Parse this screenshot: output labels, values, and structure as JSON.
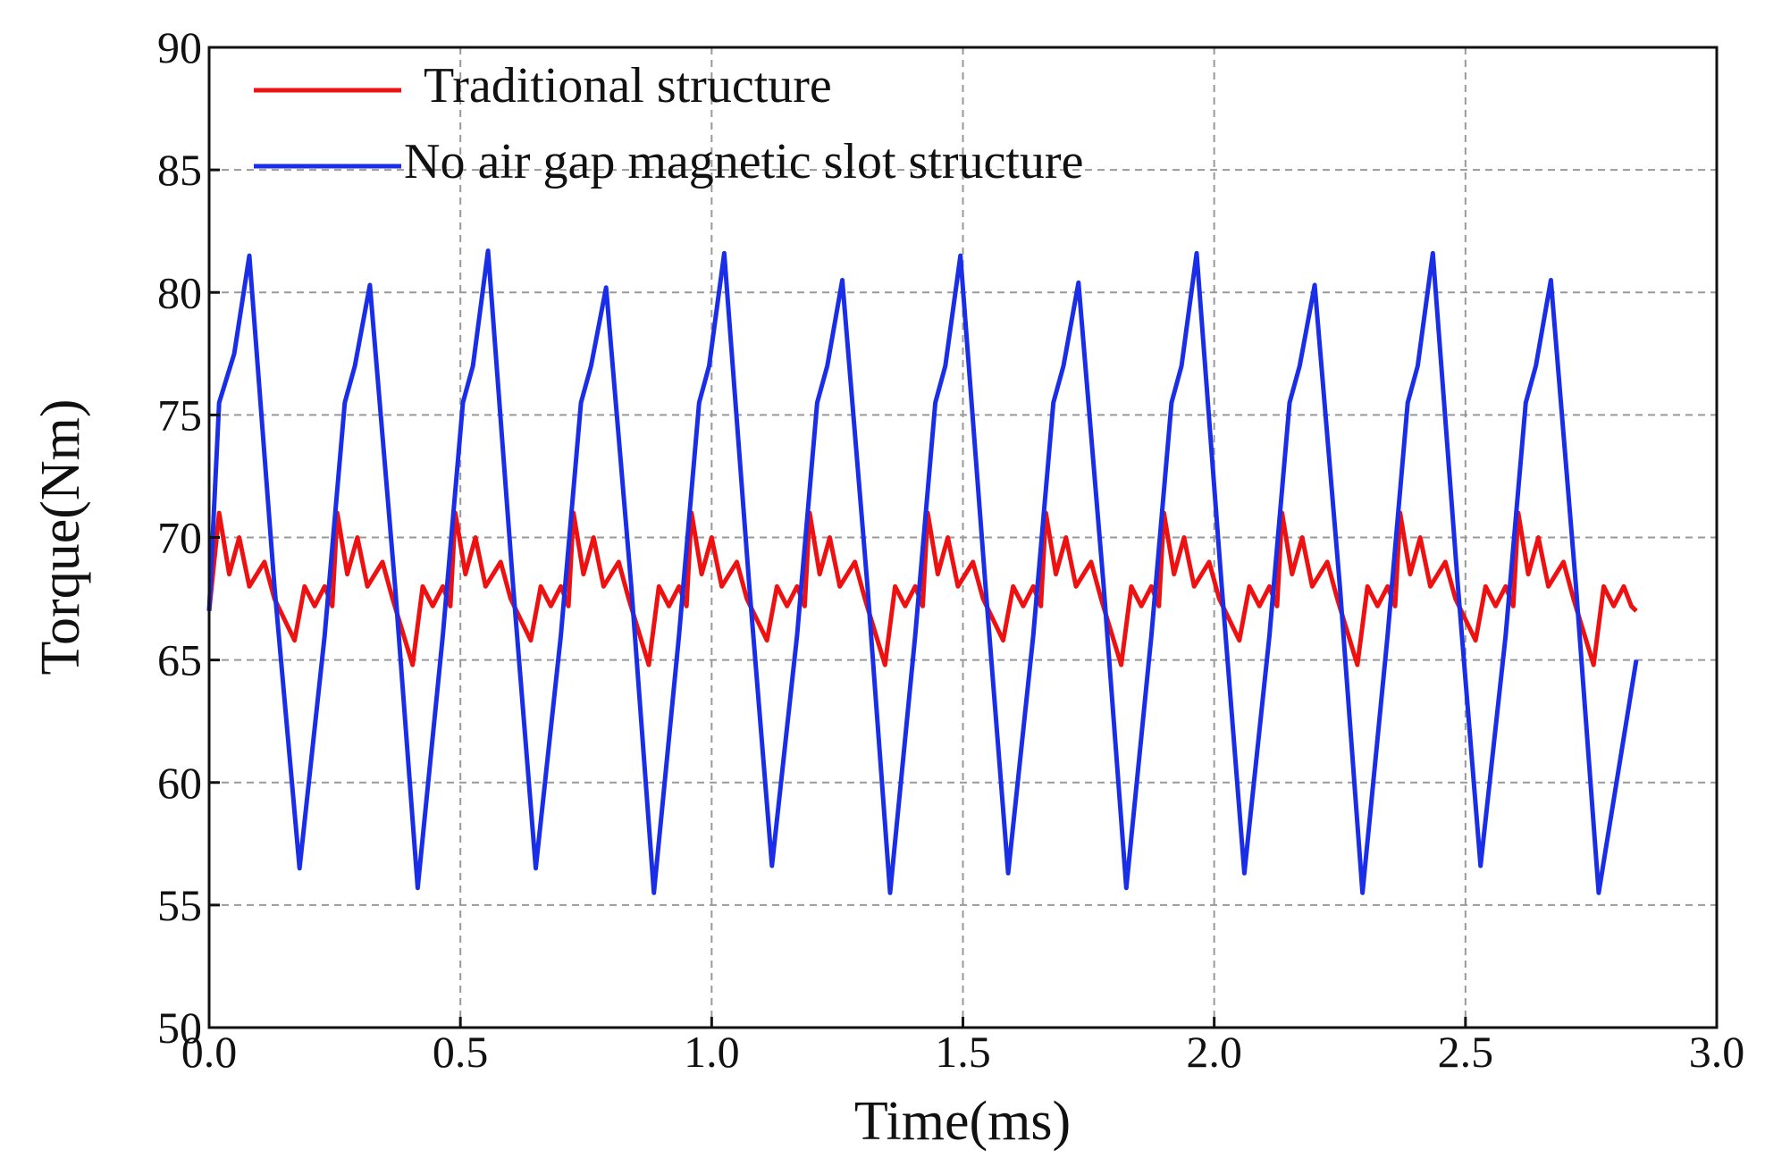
{
  "chart_data": {
    "type": "line",
    "xlabel": "Time(ms)",
    "ylabel": "Torque(Nm)",
    "xlim": [
      0,
      3.0
    ],
    "ylim": [
      50,
      90
    ],
    "xticks": [
      {
        "value": 0,
        "label": "0.0"
      },
      0.5,
      {
        "value": 1,
        "label": "1.0"
      },
      1.5,
      {
        "value": 2,
        "label": "2.0"
      },
      2.5,
      {
        "value": 3,
        "label": "3.0"
      }
    ],
    "yticks": [
      50,
      55,
      60,
      65,
      70,
      75,
      80,
      85,
      90
    ],
    "grid": true,
    "legend": "upper left",
    "series": [
      {
        "name": "Traditional structure",
        "color": "#ee1111",
        "x": [
          0,
          0.02,
          0.04,
          0.06,
          0.08,
          0.11,
          0.13,
          0.17,
          0.19,
          0.21,
          0.23,
          0.245,
          0.255,
          0.275,
          0.295,
          0.315,
          0.345,
          0.365,
          0.405,
          0.425,
          0.445,
          0.465,
          0.48,
          0.49,
          0.51,
          0.53,
          0.55,
          0.58,
          0.6,
          0.64,
          0.66,
          0.68,
          0.7,
          0.715,
          0.725,
          0.745,
          0.765,
          0.785,
          0.815,
          0.835,
          0.875,
          0.895,
          0.915,
          0.935,
          0.95,
          0.96,
          0.98,
          1.0,
          1.02,
          1.05,
          1.07,
          1.11,
          1.13,
          1.15,
          1.17,
          1.185,
          1.195,
          1.215,
          1.235,
          1.255,
          1.285,
          1.305,
          1.345,
          1.365,
          1.385,
          1.405,
          1.42,
          1.43,
          1.45,
          1.47,
          1.49,
          1.52,
          1.54,
          1.58,
          1.6,
          1.62,
          1.64,
          1.655,
          1.665,
          1.685,
          1.705,
          1.725,
          1.755,
          1.775,
          1.815,
          1.835,
          1.855,
          1.875,
          1.89,
          1.9,
          1.92,
          1.94,
          1.96,
          1.99,
          2.01,
          2.05,
          2.07,
          2.09,
          2.11,
          2.125,
          2.135,
          2.155,
          2.175,
          2.195,
          2.225,
          2.245,
          2.285,
          2.305,
          2.325,
          2.345,
          2.36,
          2.37,
          2.39,
          2.41,
          2.43,
          2.46,
          2.48,
          2.52,
          2.54,
          2.56,
          2.58,
          2.595,
          2.605,
          2.625,
          2.645,
          2.665,
          2.695,
          2.715,
          2.755,
          2.775,
          2.795,
          2.815,
          2.83,
          2.84
        ],
        "values": [
          67,
          71,
          68.5,
          70,
          68,
          69,
          67.5,
          65.8,
          68,
          67.2,
          68,
          67.2,
          71,
          68.5,
          70,
          68,
          69,
          67.5,
          64.8,
          68,
          67.2,
          68,
          67.2,
          71,
          68.5,
          70,
          68,
          69,
          67.5,
          65.8,
          68,
          67.2,
          68,
          67.2,
          71,
          68.5,
          70,
          68,
          69,
          67.5,
          64.8,
          68,
          67.2,
          68,
          67.2,
          71,
          68.5,
          70,
          68,
          69,
          67.5,
          65.8,
          68,
          67.2,
          68,
          67.2,
          71,
          68.5,
          70,
          68,
          69,
          67.5,
          64.8,
          68,
          67.2,
          68,
          67.2,
          71,
          68.5,
          70,
          68,
          69,
          67.5,
          65.8,
          68,
          67.2,
          68,
          67.2,
          71,
          68.5,
          70,
          68,
          69,
          67.5,
          64.8,
          68,
          67.2,
          68,
          67.2,
          71,
          68.5,
          70,
          68,
          69,
          67.5,
          65.8,
          68,
          67.2,
          68,
          67.2,
          71,
          68.5,
          70,
          68,
          69,
          67.5,
          64.8,
          68,
          67.2,
          68,
          67.2,
          71,
          68.5,
          70,
          68,
          69,
          67.5,
          65.8,
          68,
          67.2,
          68,
          67.2,
          71,
          68.5,
          70,
          68,
          69,
          67.5,
          64.8,
          68,
          67.2,
          68,
          67.2,
          67
        ]
      },
      {
        "name": "No air gap magnetic slot structure",
        "color": "#1a2ee8",
        "x": [
          0,
          0.02,
          0.05,
          0.08,
          0.13,
          0.18,
          0.23,
          0.27,
          0.29,
          0.32,
          0.37,
          0.415,
          0.465,
          0.505,
          0.525,
          0.555,
          0.605,
          0.65,
          0.7,
          0.74,
          0.76,
          0.79,
          0.84,
          0.885,
          0.935,
          0.975,
          0.995,
          1.025,
          1.075,
          1.12,
          1.17,
          1.21,
          1.23,
          1.26,
          1.31,
          1.355,
          1.405,
          1.445,
          1.465,
          1.495,
          1.545,
          1.59,
          1.64,
          1.68,
          1.7,
          1.73,
          1.78,
          1.825,
          1.875,
          1.915,
          1.935,
          1.965,
          2.015,
          2.06,
          2.11,
          2.15,
          2.17,
          2.2,
          2.25,
          2.295,
          2.345,
          2.385,
          2.405,
          2.435,
          2.485,
          2.53,
          2.58,
          2.62,
          2.64,
          2.67,
          2.72,
          2.765,
          2.84
        ],
        "values": [
          67,
          75.5,
          77.5,
          81.5,
          68,
          56.5,
          66,
          75.5,
          77,
          80.3,
          68,
          55.7,
          66,
          75.5,
          77,
          81.7,
          68,
          56.5,
          66,
          75.5,
          77,
          80.2,
          68,
          55.5,
          66,
          75.5,
          77,
          81.6,
          68,
          56.6,
          66,
          75.5,
          77,
          80.5,
          68,
          55.5,
          66,
          75.5,
          77,
          81.5,
          68,
          56.3,
          66,
          75.5,
          77,
          80.4,
          68,
          55.7,
          66,
          75.5,
          77,
          81.6,
          68,
          56.3,
          66,
          75.5,
          77,
          80.3,
          68,
          55.5,
          66,
          75.5,
          77,
          81.6,
          68,
          56.6,
          66,
          75.5,
          77,
          80.5,
          68,
          55.5,
          65
        ]
      }
    ]
  }
}
